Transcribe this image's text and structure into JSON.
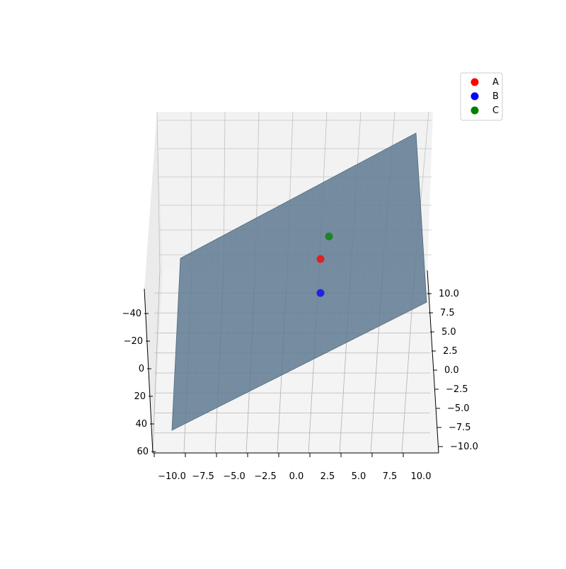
{
  "chart_data": {
    "type": "3d-surface-scatter",
    "title": "",
    "axes": {
      "x": {
        "label": "",
        "range": [
          -10,
          10
        ],
        "ticks": [
          -10.0,
          -7.5,
          -5.0,
          -2.5,
          0.0,
          2.5,
          5.0,
          7.5,
          10.0
        ],
        "tick_labels": [
          "−10.0",
          "−7.5",
          "−5.0",
          "−2.5",
          "0.0",
          "2.5",
          "5.0",
          "7.5",
          "10.0"
        ]
      },
      "y": {
        "label": "",
        "range": [
          -10,
          10
        ],
        "ticks": [
          10.0,
          7.5,
          5.0,
          2.5,
          0.0,
          -2.5,
          -5.0,
          -7.5,
          -10.0
        ],
        "tick_labels": [
          "10.0",
          "7.5",
          "5.0",
          "2.5",
          "0.0",
          "−2.5",
          "−5.0",
          "−7.5",
          "−10.0"
        ]
      },
      "z": {
        "label": "",
        "range": [
          -50,
          60
        ],
        "ticks": [
          -40,
          -20,
          0,
          20,
          40,
          60
        ],
        "tick_labels": [
          "−40",
          "−20",
          "0",
          "20",
          "40",
          "60"
        ]
      }
    },
    "grid": true,
    "surface": {
      "type": "plane",
      "color": "#5f7a92",
      "opacity": 0.85
    },
    "series": [
      {
        "name": "A",
        "color": "#ff0000",
        "points": [
          [
            2.0,
            1.0,
            3.0
          ]
        ]
      },
      {
        "name": "B",
        "color": "#0000ff",
        "points": [
          [
            2.0,
            1.0,
            13.0
          ]
        ]
      },
      {
        "name": "C",
        "color": "#008000",
        "points": [
          [
            3.0,
            1.0,
            -4.0
          ]
        ]
      }
    ],
    "legend": {
      "position": "top-right",
      "entries": [
        "A",
        "B",
        "C"
      ]
    }
  }
}
